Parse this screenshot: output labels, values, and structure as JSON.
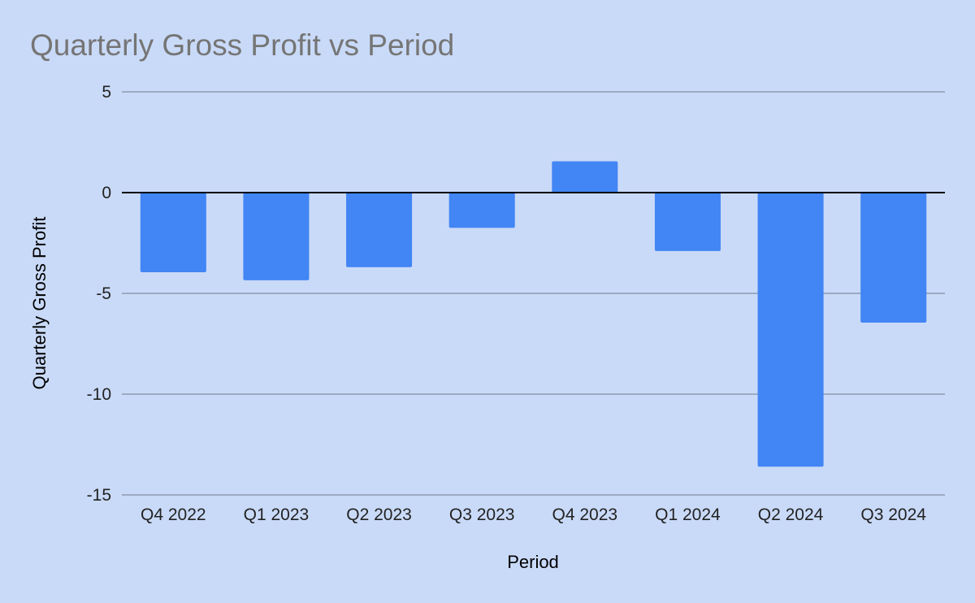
{
  "colors": {
    "background": "#c9daf8",
    "bar": "#4285f4",
    "title": "#757575"
  },
  "chart_data": {
    "type": "bar",
    "title": "Quarterly Gross Profit vs Period",
    "xlabel": "Period",
    "ylabel": "Quarterly Gross Profit",
    "categories": [
      "Q4 2022",
      "Q1 2023",
      "Q2 2023",
      "Q3 2023",
      "Q4 2023",
      "Q1 2024",
      "Q2 2024",
      "Q3 2024"
    ],
    "series": [
      {
        "values": [
          -3.95,
          -4.35,
          -3.7,
          -1.75,
          1.55,
          -2.9,
          -13.6,
          -6.45
        ]
      }
    ],
    "ylim": [
      -15,
      5
    ],
    "yticks": [
      5,
      0,
      -5,
      -10,
      -15
    ],
    "grid": true,
    "legend": "none"
  }
}
